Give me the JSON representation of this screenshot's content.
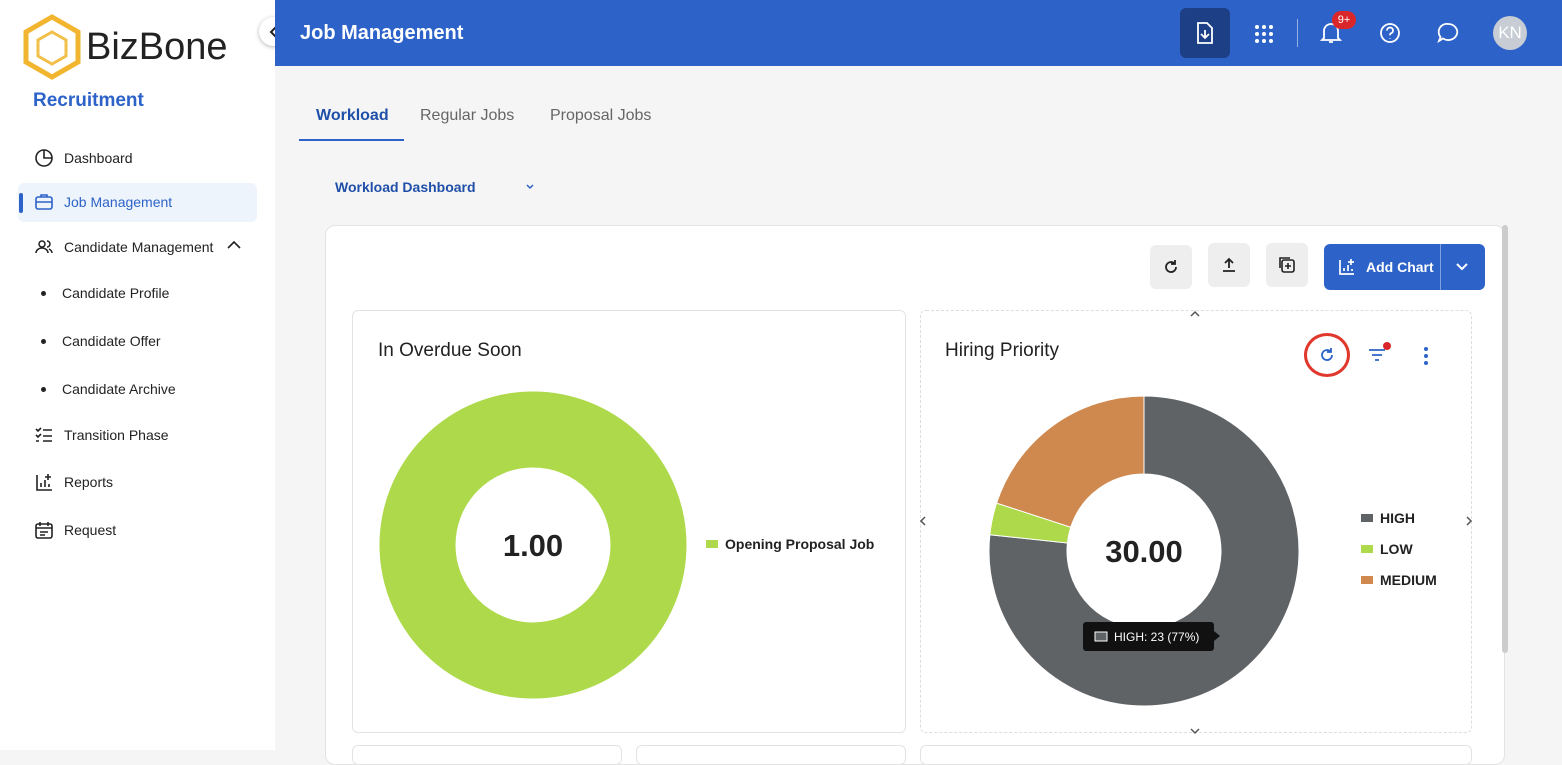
{
  "app": {
    "brand": "BizBone",
    "module": "Recruitment"
  },
  "nav": [
    {
      "label": "Dashboard"
    },
    {
      "label": "Job Management",
      "active": true
    },
    {
      "label": "Candidate Management",
      "children": [
        "Candidate Profile",
        "Candidate Offer",
        "Candidate Archive"
      ]
    },
    {
      "label": "Transition Phase"
    },
    {
      "label": "Reports"
    },
    {
      "label": "Request"
    }
  ],
  "header": {
    "title": "Job Management",
    "notification_badge": "9+",
    "avatar": "KN"
  },
  "tabs": [
    "Workload",
    "Regular Jobs",
    "Proposal Jobs"
  ],
  "dashboard_select": "Workload Dashboard",
  "toolbar": {
    "add_chart": "Add Chart"
  },
  "charts": [
    {
      "type": "donut",
      "title": "In Overdue Soon",
      "center_label": "1.00",
      "categories": [
        "Opening Proposal Job"
      ],
      "values": [
        1
      ],
      "colors": [
        "#add94a"
      ]
    },
    {
      "type": "donut",
      "title": "Hiring Priority",
      "center_label": "30.00",
      "categories": [
        "HIGH",
        "LOW",
        "MEDIUM"
      ],
      "values": [
        23,
        1,
        6
      ],
      "colors": [
        "#606366",
        "#add94a",
        "#cf884d"
      ],
      "tooltip": "HIGH: 23 (77%)"
    }
  ]
}
